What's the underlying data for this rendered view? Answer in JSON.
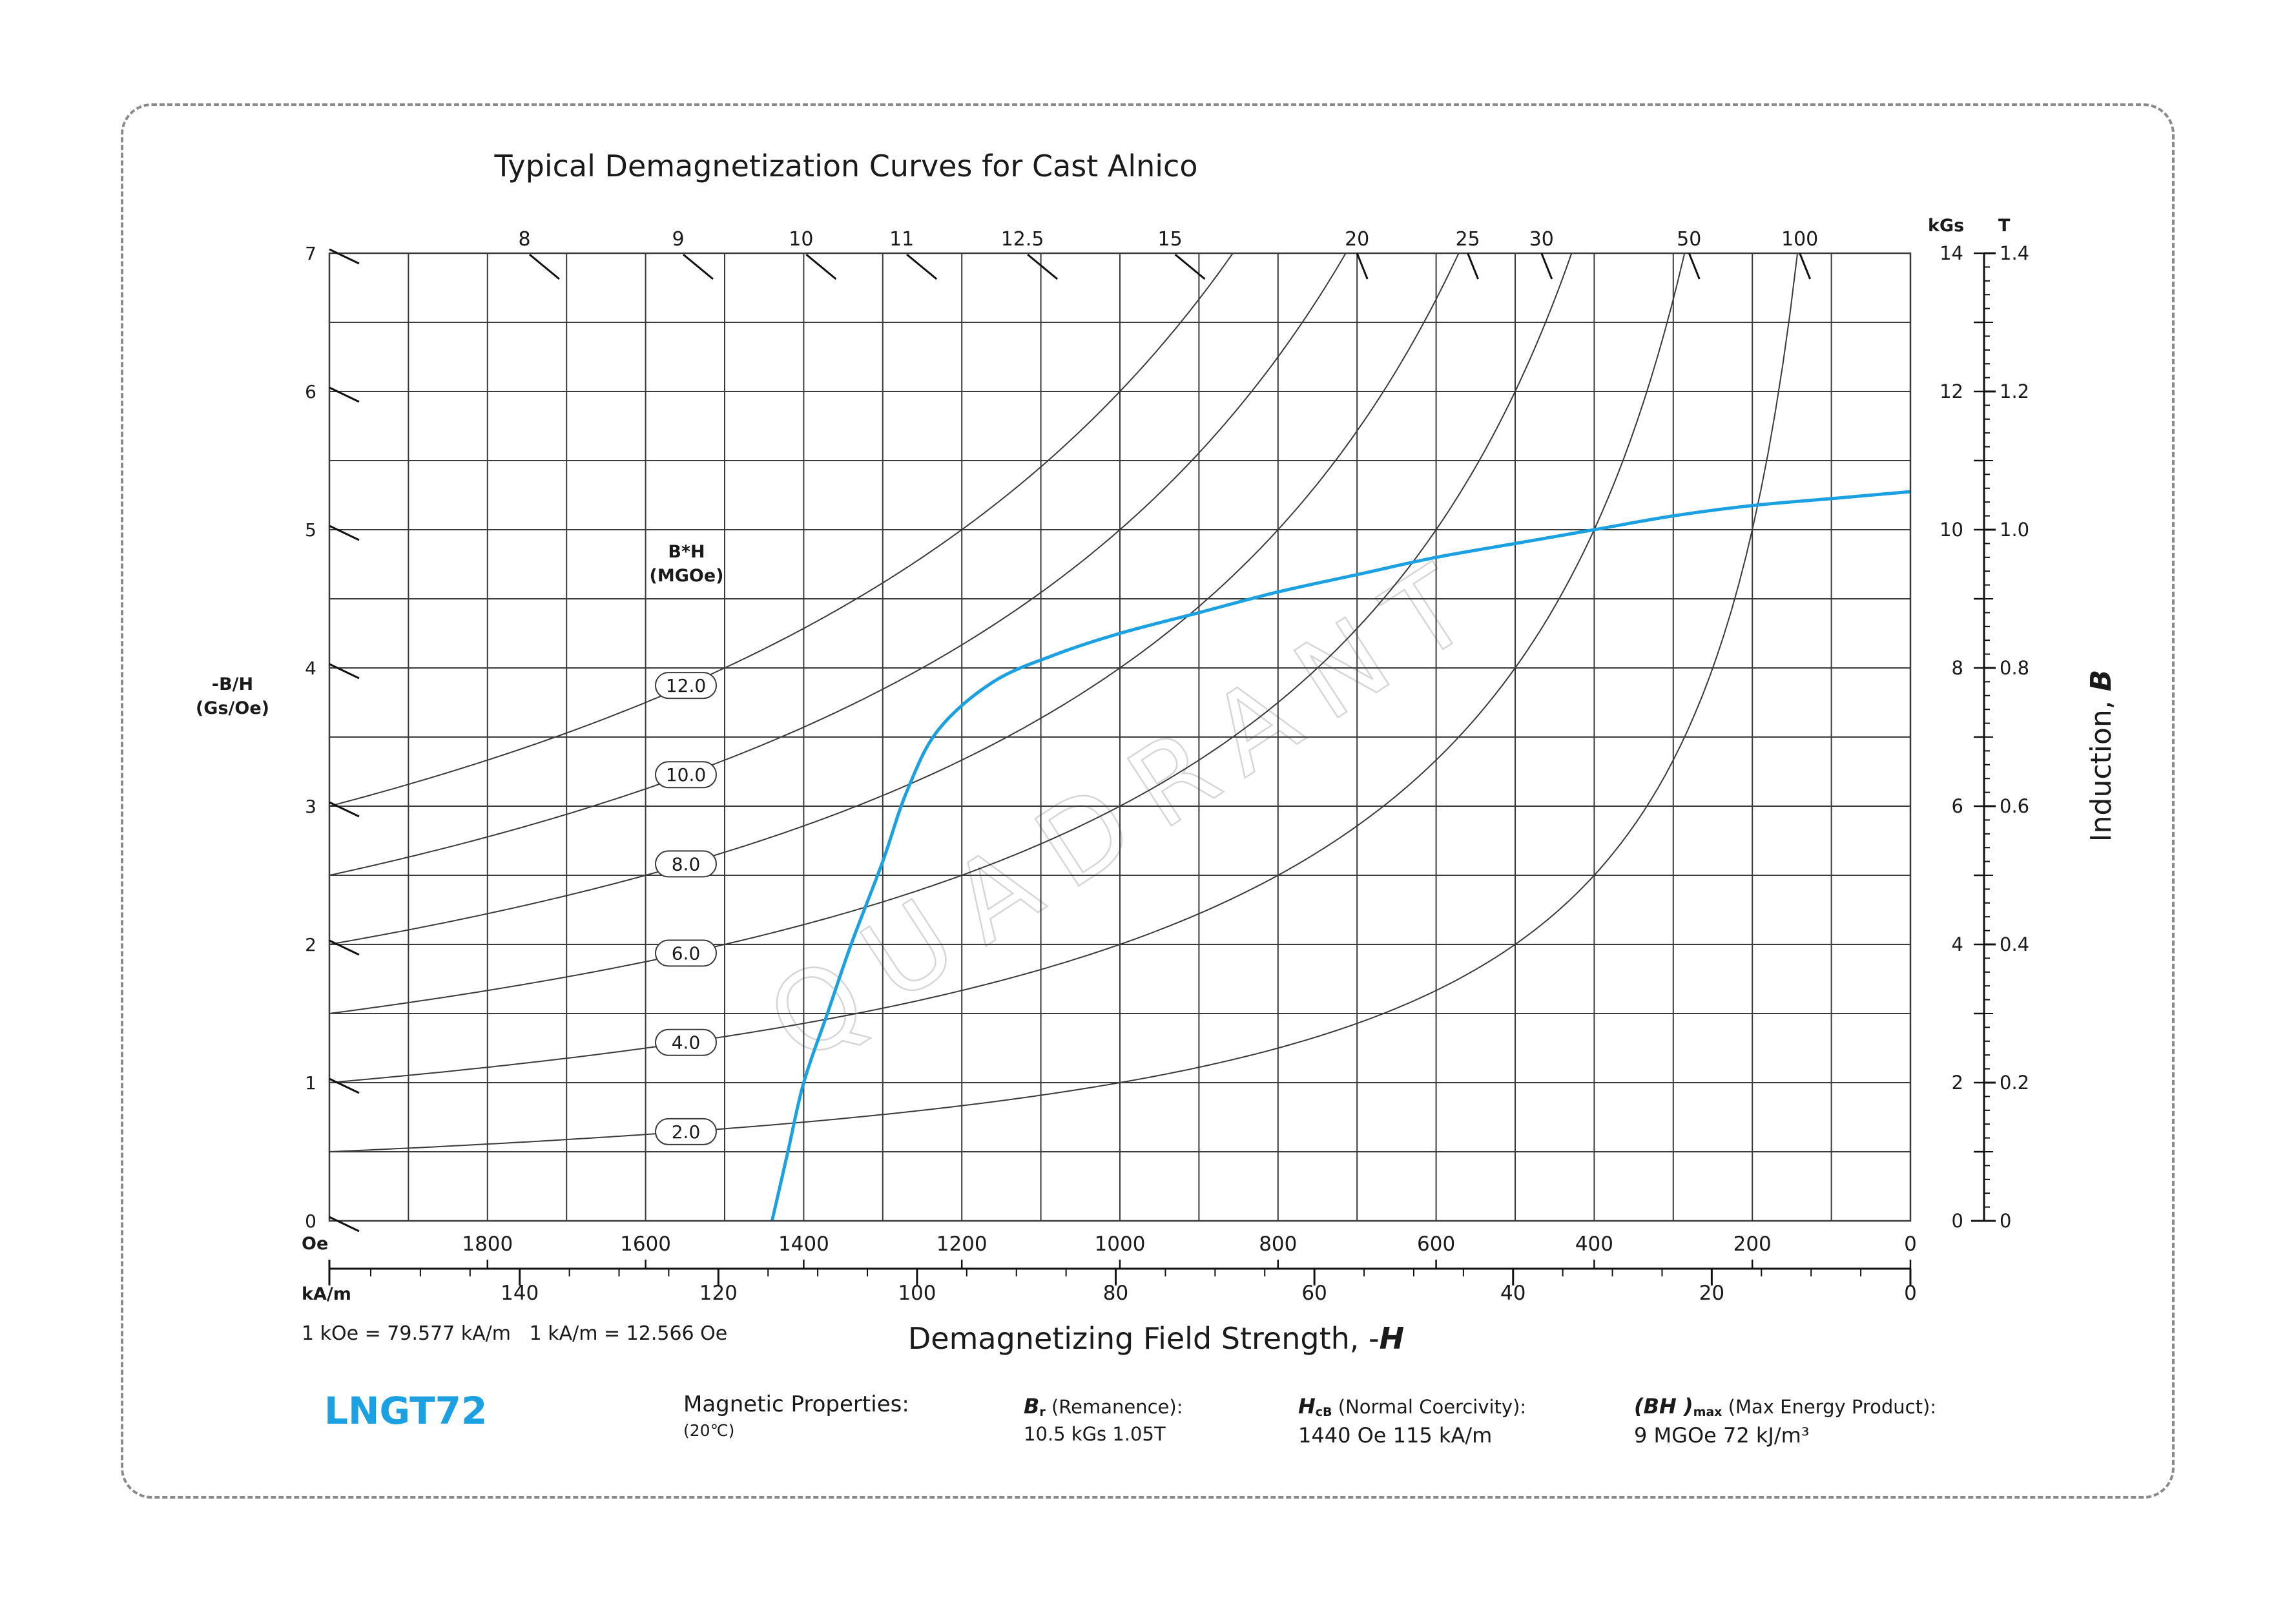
{
  "chart_data": {
    "type": "line",
    "title": "Typical Demagnetization Curves for Cast Alnico",
    "xlabel": "Demagnetizing Field Strength, -",
    "xlabel_var": "H",
    "x_unit_primary": "Oe",
    "x_unit_secondary": "kA/m",
    "xlim_oe": [
      2000,
      0
    ],
    "x_ticks_oe": [
      "1800",
      "1600",
      "1400",
      "1200",
      "1000",
      "800",
      "600",
      "400",
      "200",
      "0"
    ],
    "x_ticks_kam": [
      "140",
      "120",
      "100",
      "80",
      "60",
      "40",
      "20",
      "0"
    ],
    "conversion_note": "1 kOe = 79.577 kA/m   1 kA/m = 12.566 Oe",
    "ylabel_right": "Induction, ",
    "ylabel_right_var": "B",
    "y_unit_kgs": "kGs",
    "y_unit_t": "T",
    "ylim_kgs": [
      0,
      14
    ],
    "y_ticks_kgs": [
      "0",
      "2",
      "4",
      "6",
      "8",
      "10",
      "12",
      "14"
    ],
    "y_ticks_t": [
      "0",
      "0.2",
      "0.4",
      "0.6",
      "0.8",
      "1.0",
      "1.2",
      "1.4"
    ],
    "ylabel_left": [
      "-B/H",
      "(Gs/Oe)"
    ],
    "permeance_ticks": [
      "0",
      "1",
      "2",
      "3",
      "4",
      "5",
      "6",
      "7"
    ],
    "top_permeance_labels": [
      "8",
      "9",
      "10",
      "11",
      "12.5",
      "15",
      "20",
      "25",
      "30",
      "50",
      "100"
    ],
    "energy_header": [
      "B*H",
      "(MGOe)"
    ],
    "energy_product_curves": [
      "2.0",
      "4.0",
      "6.0",
      "8.0",
      "10.0",
      "12.0"
    ],
    "grid": true,
    "series": [
      {
        "name": "LNGT72",
        "color": "#1ba1e2",
        "points_oe_kgs": [
          [
            1440,
            0
          ],
          [
            1420,
            1
          ],
          [
            1400,
            2
          ],
          [
            1370,
            3
          ],
          [
            1340,
            4
          ],
          [
            1300,
            5.2
          ],
          [
            1270,
            6.2
          ],
          [
            1230,
            7.1
          ],
          [
            1160,
            7.8
          ],
          [
            1080,
            8.2
          ],
          [
            1000,
            8.5
          ],
          [
            900,
            8.8
          ],
          [
            800,
            9.1
          ],
          [
            700,
            9.35
          ],
          [
            600,
            9.6
          ],
          [
            500,
            9.8
          ],
          [
            400,
            10.0
          ],
          [
            300,
            10.2
          ],
          [
            200,
            10.35
          ],
          [
            100,
            10.45
          ],
          [
            0,
            10.55
          ]
        ]
      }
    ]
  },
  "footer": {
    "model": "LNGT72",
    "properties_label": "Magnetic Properties:",
    "temperature": "(20℃)",
    "br_symbol": "B",
    "br_sub": "r",
    "br_label": " (Remanence):",
    "br_values": "10.5 kGs    1.05T",
    "hcb_symbol": "H",
    "hcb_sub": "cB",
    "hcb_label": " (Normal Coercivity):",
    "hcb_values": "1440 Oe   115 kA/m",
    "bh_symbol": "(BH )",
    "bh_sub": "max",
    "bh_label": " (Max Energy Product):",
    "bh_values": "9 MGOe    72 kJ/m³"
  },
  "watermark": "QUADRANT",
  "colors": {
    "accent": "#1ba1e2",
    "grid": "#3a3a3a",
    "frame": "#8a8a8a"
  }
}
